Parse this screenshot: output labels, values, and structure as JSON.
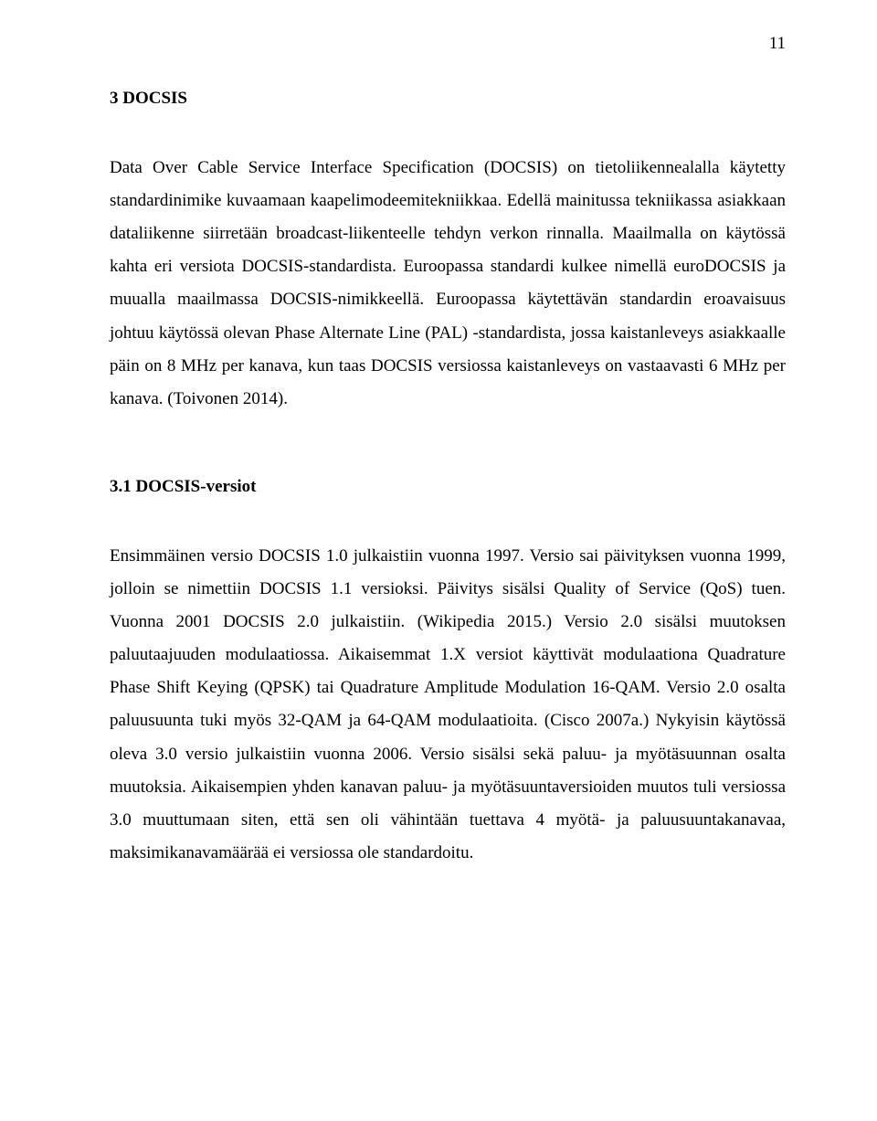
{
  "page_number": "11",
  "heading1": "3 DOCSIS",
  "para1": "Data Over Cable Service Interface Specification (DOCSIS) on tietoliikennealalla käytetty standardinimike kuvaamaan kaapelimodeemitekniikkaa. Edellä mainitussa tekniikassa asiakkaan dataliikenne siirretään broadcast-liikenteelle tehdyn verkon rinnalla. Maailmalla on käytössä kahta eri versiota DOCSIS-standardista. Euroopassa standardi kulkee nimellä euroDOCSIS ja muualla maailmassa DOCSIS-nimikkeellä. Euroopassa käytettävän standardin eroavaisuus johtuu käytössä olevan Phase Alternate Line (PAL) -standardista, jossa kaistanleveys asiakkaalle päin on 8 MHz per kanava, kun taas DOCSIS versiossa kaistanleveys on vastaavasti 6 MHz per kanava. (Toivonen 2014).",
  "heading2": "3.1 DOCSIS-versiot",
  "para2": "Ensimmäinen versio DOCSIS 1.0 julkaistiin vuonna 1997. Versio sai päivityksen vuonna 1999, jolloin se nimettiin DOCSIS 1.1 versioksi. Päivitys sisälsi Quality of Service (QoS) tuen. Vuonna 2001 DOCSIS 2.0 julkaistiin. (Wikipedia 2015.) Versio 2.0 sisälsi muutoksen paluutaajuuden modulaatiossa. Aikaisemmat 1.X versiot käyttivät modulaationa Quadrature Phase Shift Keying (QPSK) tai Quadrature Amplitude Modulation 16-QAM. Versio 2.0 osalta paluusuunta tuki myös 32-QAM ja 64-QAM modulaatioita. (Cisco 2007a.) Nykyisin käytössä oleva 3.0 versio julkaistiin vuonna 2006. Versio sisälsi sekä paluu- ja myötäsuunnan osalta muutoksia. Aikaisempien yhden kanavan paluu- ja myötäsuuntaversioiden muutos tuli versiossa 3.0 muuttumaan siten, että sen oli vähintään tuettava 4 myötä- ja paluusuuntakanavaa, maksimikanavamäärää ei versiossa ole standardoitu."
}
